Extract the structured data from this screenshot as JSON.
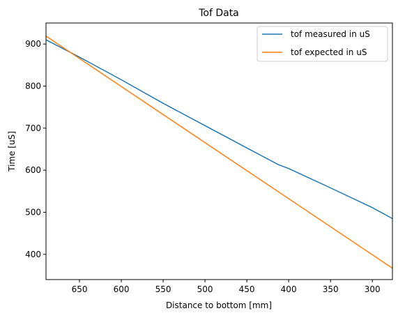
{
  "chart_data": {
    "type": "line",
    "title": "Tof Data",
    "xlabel": "Distance to bottom [mm]",
    "ylabel": "Time [uS]",
    "xlim": [
      690,
      276
    ],
    "ylim": [
      340,
      950
    ],
    "x_inverted": true,
    "grid": false,
    "legend_position": "top-right",
    "xticks": [
      650,
      600,
      550,
      500,
      450,
      400,
      350,
      300
    ],
    "yticks": [
      400,
      500,
      600,
      700,
      800,
      900
    ],
    "series": [
      {
        "name": "tof measured in uS",
        "color": "#1f77b4",
        "x": [
          690,
          650,
          600,
          550,
          500,
          450,
          412,
          400,
          350,
          300,
          276
        ],
        "y": [
          910,
          869,
          815,
          759,
          706,
          653,
          613,
          604,
          558,
          511,
          485
        ]
      },
      {
        "name": "tof expected in uS",
        "color": "#ff7f0e",
        "x": [
          690,
          276
        ],
        "y": [
          919,
          367
        ]
      }
    ]
  }
}
